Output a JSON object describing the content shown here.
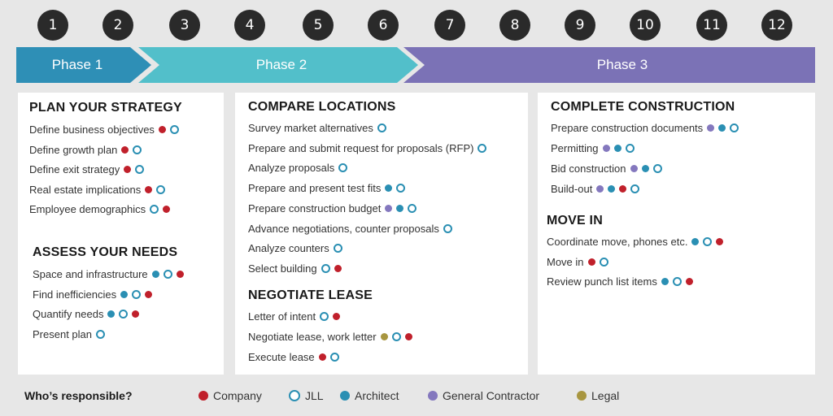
{
  "steps": [
    "1",
    "2",
    "3",
    "4",
    "5",
    "6",
    "7",
    "8",
    "9",
    "10",
    "11",
    "12"
  ],
  "phases": [
    {
      "label": "Phase 1",
      "color": "#2e8fb6"
    },
    {
      "label": "Phase 2",
      "color": "#52bfca"
    },
    {
      "label": "Phase 3",
      "color": "#7b72b6"
    }
  ],
  "columns": [
    {
      "sections": [
        {
          "title": "PLAN YOUR STRATEGY",
          "items": [
            {
              "text": "Define business objectives",
              "roles": [
                "company",
                "jll"
              ]
            },
            {
              "text": "Define growth plan",
              "roles": [
                "company",
                "jll"
              ]
            },
            {
              "text": "Define exit strategy",
              "roles": [
                "company",
                "jll"
              ]
            },
            {
              "text": "Real estate implications",
              "roles": [
                "company",
                "jll"
              ]
            },
            {
              "text": "Employee demographics",
              "roles": [
                "jll",
                "company"
              ]
            }
          ]
        },
        {
          "title": "ASSESS YOUR NEEDS",
          "items": [
            {
              "text": "Space and infrastructure",
              "roles": [
                "architect",
                "jll",
                "company"
              ]
            },
            {
              "text": "Find inefficiencies",
              "roles": [
                "architect",
                "jll",
                "company"
              ]
            },
            {
              "text": "Quantify needs",
              "roles": [
                "architect",
                "jll",
                "company"
              ]
            },
            {
              "text": "Present plan",
              "roles": [
                "jll"
              ]
            }
          ]
        }
      ]
    },
    {
      "sections": [
        {
          "title": "COMPARE LOCATIONS",
          "items": [
            {
              "text": "Survey market alternatives",
              "roles": [
                "jll"
              ]
            },
            {
              "text": "Prepare and submit request for proposals (RFP)",
              "roles": [
                "jll"
              ]
            },
            {
              "text": "Analyze proposals",
              "roles": [
                "jll"
              ]
            },
            {
              "text": "Prepare and present test fits",
              "roles": [
                "architect",
                "jll"
              ]
            },
            {
              "text": "Prepare construction budget",
              "roles": [
                "gc",
                "architect",
                "jll"
              ]
            },
            {
              "text": "Advance negotiations, counter proposals",
              "roles": [
                "jll"
              ]
            },
            {
              "text": "Analyze counters",
              "roles": [
                "jll"
              ]
            },
            {
              "text": "Select building",
              "roles": [
                "jll",
                "company"
              ]
            }
          ]
        },
        {
          "title": "NEGOTIATE LEASE",
          "items": [
            {
              "text": "Letter of intent",
              "roles": [
                "jll",
                "company"
              ]
            },
            {
              "text": "Negotiate lease, work letter",
              "roles": [
                "legal",
                "jll",
                "company"
              ]
            },
            {
              "text": "Execute lease",
              "roles": [
                "company",
                "jll"
              ]
            }
          ]
        }
      ]
    },
    {
      "sections": [
        {
          "title": "COMPLETE CONSTRUCTION",
          "items": [
            {
              "text": "Prepare construction documents",
              "roles": [
                "gc",
                "architect",
                "jll"
              ]
            },
            {
              "text": "Permitting",
              "roles": [
                "gc",
                "architect",
                "jll"
              ]
            },
            {
              "text": "Bid construction",
              "roles": [
                "gc",
                "architect",
                "jll"
              ]
            },
            {
              "text": "Build-out",
              "roles": [
                "gc",
                "architect",
                "company",
                "jll"
              ]
            }
          ]
        },
        {
          "title": "MOVE IN",
          "items": [
            {
              "text": "Coordinate move, phones etc.",
              "roles": [
                "architect",
                "jll",
                "company"
              ]
            },
            {
              "text": "Move in",
              "roles": [
                "company",
                "jll"
              ]
            },
            {
              "text": "Review punch list items",
              "roles": [
                "architect",
                "jll",
                "company"
              ]
            }
          ]
        }
      ]
    }
  ],
  "legend": {
    "title": "Who’s responsible?",
    "items": [
      {
        "role": "company",
        "label": "Company",
        "color": "#c0202b"
      },
      {
        "role": "jll",
        "label": "JLL",
        "color": "#2a8fb3"
      },
      {
        "role": "architect",
        "label": "Architect",
        "color": "#2a8fb3"
      },
      {
        "role": "gc",
        "label": "General Contractor",
        "color": "#8478be"
      },
      {
        "role": "legal",
        "label": "Legal",
        "color": "#a89640"
      }
    ]
  }
}
